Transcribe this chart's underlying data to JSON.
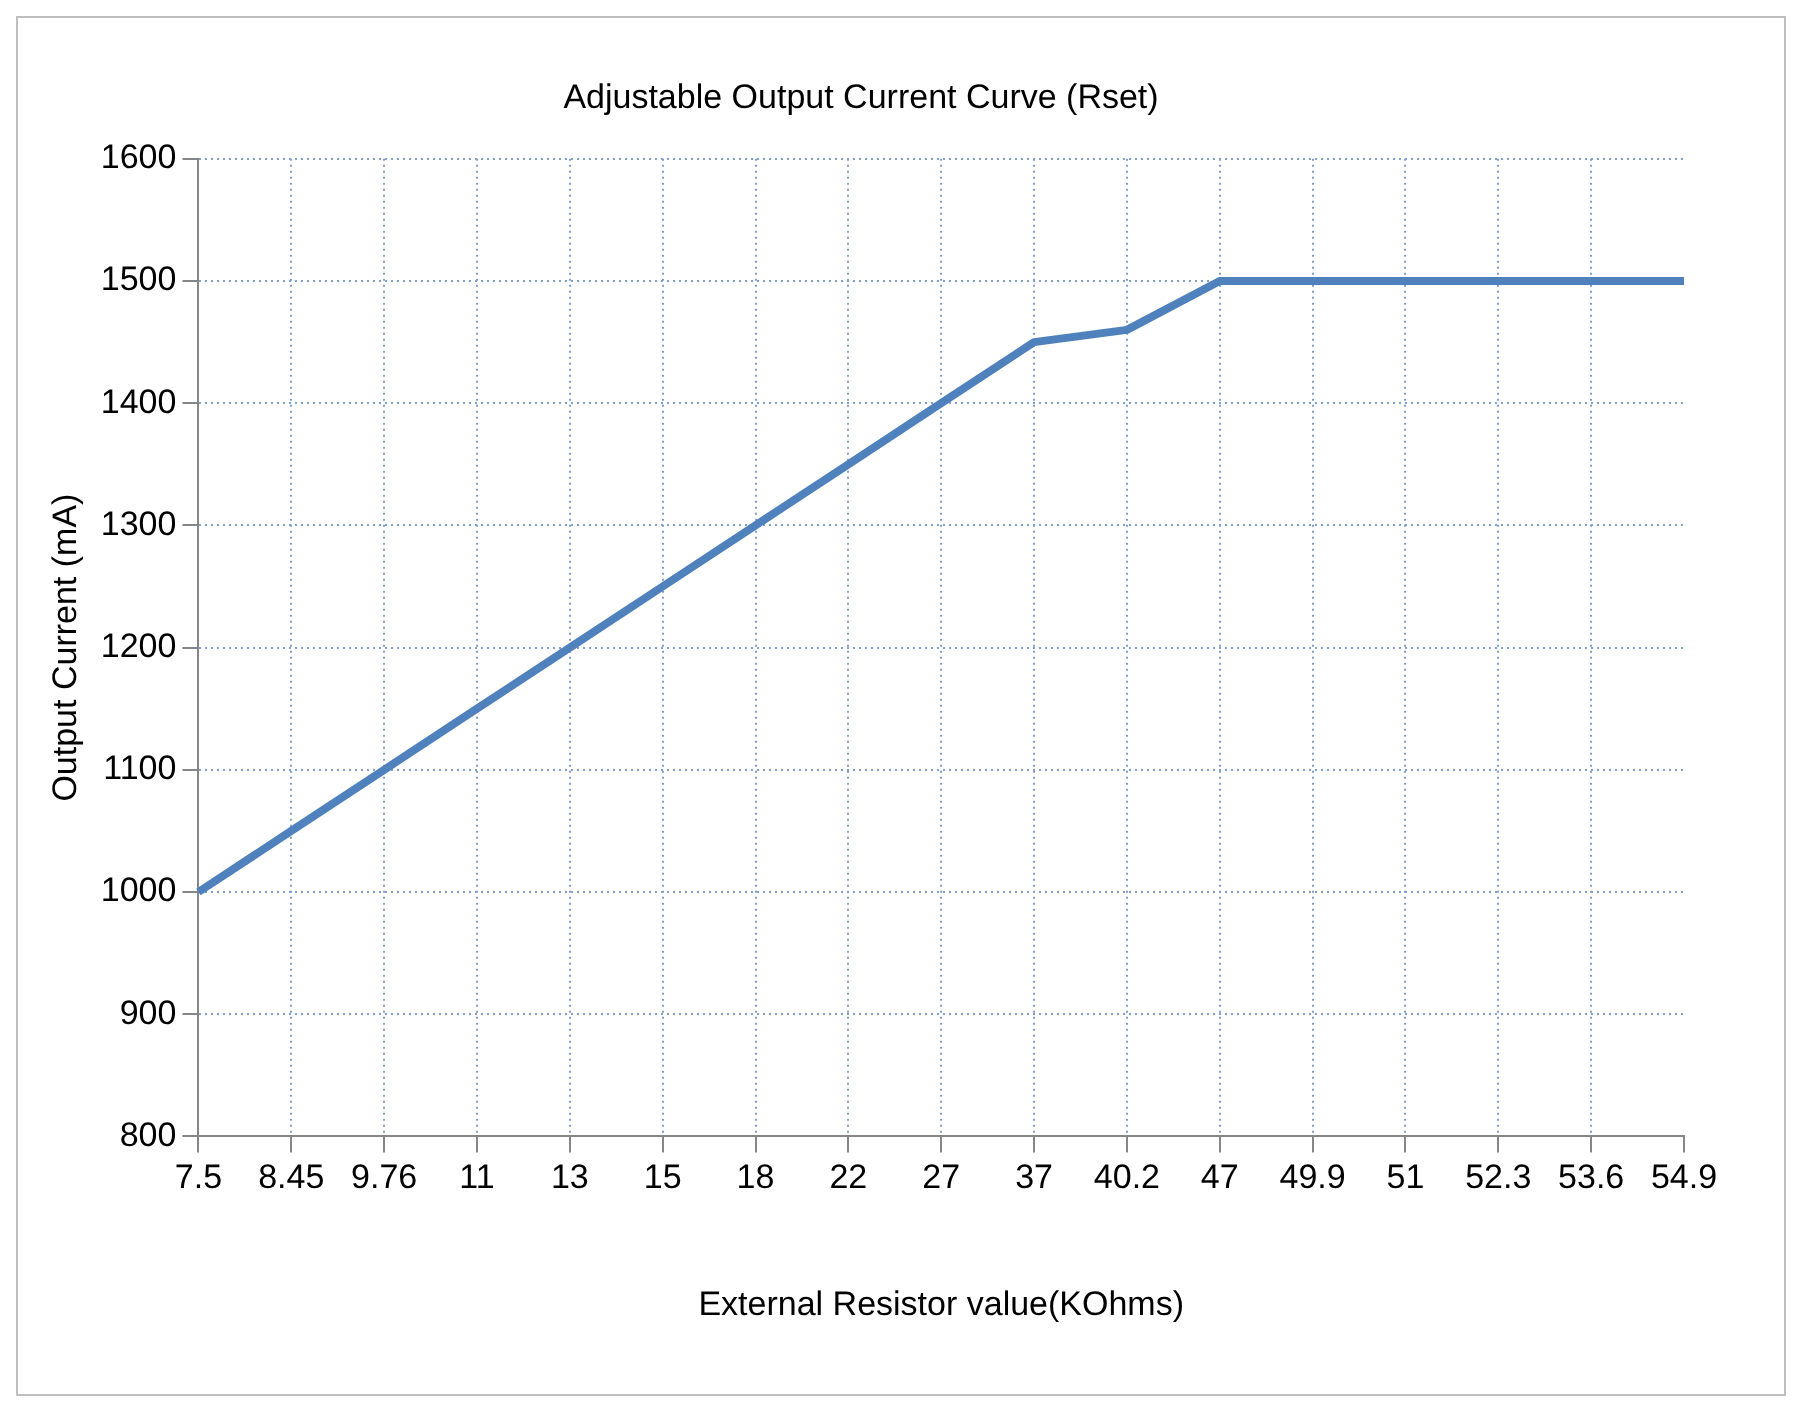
{
  "chart_data": {
    "type": "line",
    "title": "Adjustable Output Current Curve (Rset)",
    "xlabel": "External Resistor value(KOhms)",
    "ylabel": "Output Current (mA)",
    "categories": [
      "7.5",
      "8.45",
      "9.76",
      "11",
      "13",
      "15",
      "18",
      "22",
      "27",
      "37",
      "40.2",
      "47",
      "49.9",
      "51",
      "52.3",
      "53.6",
      "54.9"
    ],
    "series": [
      {
        "color": "#4f81bd",
        "values": [
          1000,
          1050,
          1100,
          1150,
          1200,
          1250,
          1300,
          1350,
          1400,
          1450,
          1460,
          1500,
          1500,
          1500,
          1500,
          1500,
          1500
        ]
      }
    ],
    "ylim": [
      800,
      1600
    ],
    "yticks": [
      800,
      900,
      1000,
      1100,
      1200,
      1300,
      1400,
      1500,
      1600
    ],
    "grid": true,
    "legend": false,
    "marker": "none",
    "line_style": "solid"
  }
}
